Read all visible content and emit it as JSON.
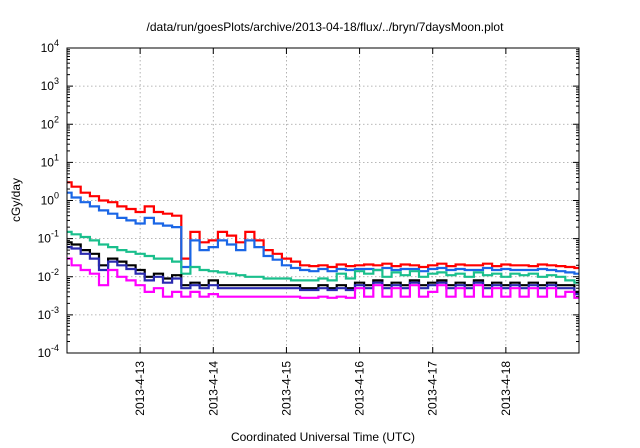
{
  "chart_data": {
    "type": "line",
    "title": "/data/run/goesPlots/archive/2013-04-18/flux/../bryn/7daysMoon.plot",
    "xlabel": "Coordinated Universal Time (UTC)",
    "ylabel": "cGy/day",
    "yscale": "log",
    "ylim": [
      0.0001,
      10000
    ],
    "xlim": [
      "2013-04-12 00:00",
      "2013-04-19 00:00"
    ],
    "y_ticks": [
      {
        "value": 0.0001,
        "base": "10",
        "exp": "-4"
      },
      {
        "value": 0.001,
        "base": "10",
        "exp": "-3"
      },
      {
        "value": 0.01,
        "base": "10",
        "exp": "-2"
      },
      {
        "value": 0.1,
        "base": "10",
        "exp": "-1"
      },
      {
        "value": 1,
        "base": "10",
        "exp": "0"
      },
      {
        "value": 10,
        "base": "10",
        "exp": "1"
      },
      {
        "value": 100,
        "base": "10",
        "exp": "2"
      },
      {
        "value": 1000,
        "base": "10",
        "exp": "3"
      },
      {
        "value": 10000,
        "base": "10",
        "exp": "4"
      }
    ],
    "x_ticks": [
      "2013-4-13",
      "2013-4-14",
      "2013-4-15",
      "2013-4-16",
      "2013-4-17",
      "2013-4-18"
    ],
    "x_tick_dates": [
      "2013-04-13 00:00",
      "2013-04-14 00:00",
      "2013-04-15 00:00",
      "2013-04-16 00:00",
      "2013-04-17 00:00",
      "2013-04-18 00:00"
    ],
    "grid": true,
    "x": [
      "2013-04-12 00:00",
      "2013-04-12 03:00",
      "2013-04-12 06:00",
      "2013-04-12 09:00",
      "2013-04-12 12:00",
      "2013-04-12 15:00",
      "2013-04-12 18:00",
      "2013-04-12 21:00",
      "2013-04-13 00:00",
      "2013-04-13 03:00",
      "2013-04-13 06:00",
      "2013-04-13 09:00",
      "2013-04-13 12:00",
      "2013-04-13 15:00",
      "2013-04-13 18:00",
      "2013-04-13 21:00",
      "2013-04-14 00:00",
      "2013-04-14 03:00",
      "2013-04-14 06:00",
      "2013-04-14 09:00",
      "2013-04-14 12:00",
      "2013-04-14 15:00",
      "2013-04-14 18:00",
      "2013-04-14 21:00",
      "2013-04-15 00:00",
      "2013-04-15 03:00",
      "2013-04-15 06:00",
      "2013-04-15 09:00",
      "2013-04-15 12:00",
      "2013-04-15 15:00",
      "2013-04-15 18:00",
      "2013-04-15 21:00",
      "2013-04-16 00:00",
      "2013-04-16 03:00",
      "2013-04-16 06:00",
      "2013-04-16 09:00",
      "2013-04-16 12:00",
      "2013-04-16 15:00",
      "2013-04-16 18:00",
      "2013-04-16 21:00",
      "2013-04-17 00:00",
      "2013-04-17 03:00",
      "2013-04-17 06:00",
      "2013-04-17 09:00",
      "2013-04-17 12:00",
      "2013-04-17 15:00",
      "2013-04-17 18:00",
      "2013-04-17 21:00",
      "2013-04-18 00:00",
      "2013-04-18 03:00",
      "2013-04-18 06:00",
      "2013-04-18 09:00",
      "2013-04-18 12:00",
      "2013-04-18 15:00",
      "2013-04-18 18:00",
      "2013-04-18 21:00",
      "2013-04-19 00:00"
    ],
    "series": [
      {
        "color": "#ff0000",
        "values": [
          3.0,
          2.3,
          1.6,
          1.3,
          1.0,
          0.9,
          0.7,
          0.6,
          0.5,
          0.7,
          0.5,
          0.45,
          0.4,
          0.03,
          0.15,
          0.08,
          0.09,
          0.15,
          0.12,
          0.08,
          0.15,
          0.09,
          0.05,
          0.04,
          0.03,
          0.025,
          0.02,
          0.019,
          0.02,
          0.018,
          0.021,
          0.019,
          0.02,
          0.021,
          0.02,
          0.022,
          0.019,
          0.021,
          0.02,
          0.018,
          0.02,
          0.022,
          0.019,
          0.021,
          0.02,
          0.02,
          0.022,
          0.019,
          0.021,
          0.02,
          0.02,
          0.019,
          0.021,
          0.02,
          0.019,
          0.018,
          0.017
        ]
      },
      {
        "color": "#1a66e6",
        "values": [
          1.6,
          1.2,
          0.9,
          0.7,
          0.55,
          0.45,
          0.35,
          0.3,
          0.25,
          0.35,
          0.25,
          0.22,
          0.2,
          0.018,
          0.09,
          0.05,
          0.06,
          0.09,
          0.07,
          0.05,
          0.09,
          0.06,
          0.035,
          0.028,
          0.02,
          0.017,
          0.015,
          0.014,
          0.016,
          0.014,
          0.016,
          0.015,
          0.016,
          0.016,
          0.015,
          0.017,
          0.015,
          0.016,
          0.016,
          0.014,
          0.016,
          0.017,
          0.015,
          0.016,
          0.015,
          0.015,
          0.017,
          0.015,
          0.016,
          0.015,
          0.015,
          0.015,
          0.016,
          0.015,
          0.014,
          0.013,
          0.012
        ]
      },
      {
        "color": "#1abf8c",
        "values": [
          0.15,
          0.13,
          0.11,
          0.09,
          0.07,
          0.06,
          0.05,
          0.045,
          0.04,
          0.035,
          0.03,
          0.03,
          0.025,
          0.012,
          0.018,
          0.015,
          0.014,
          0.013,
          0.012,
          0.011,
          0.01,
          0.01,
          0.009,
          0.009,
          0.009,
          0.008,
          0.008,
          0.008,
          0.009,
          0.008,
          0.012,
          0.009,
          0.014,
          0.012,
          0.015,
          0.01,
          0.013,
          0.011,
          0.014,
          0.01,
          0.012,
          0.013,
          0.011,
          0.012,
          0.01,
          0.013,
          0.011,
          0.012,
          0.01,
          0.012,
          0.011,
          0.012,
          0.01,
          0.011,
          0.01,
          0.008,
          0.007
        ]
      },
      {
        "color": "#000000",
        "values": [
          0.08,
          0.07,
          0.05,
          0.04,
          0.02,
          0.03,
          0.025,
          0.02,
          0.015,
          0.01,
          0.012,
          0.009,
          0.011,
          0.006,
          0.007,
          0.006,
          0.008,
          0.006,
          0.006,
          0.006,
          0.006,
          0.006,
          0.006,
          0.006,
          0.006,
          0.006,
          0.005,
          0.005,
          0.006,
          0.005,
          0.006,
          0.005,
          0.007,
          0.006,
          0.008,
          0.006,
          0.007,
          0.006,
          0.008,
          0.006,
          0.007,
          0.008,
          0.006,
          0.007,
          0.006,
          0.008,
          0.006,
          0.007,
          0.006,
          0.007,
          0.006,
          0.007,
          0.006,
          0.007,
          0.006,
          0.006,
          0.004
        ]
      },
      {
        "color": "#2a2ab0",
        "values": [
          0.06,
          0.055,
          0.04,
          0.03,
          0.015,
          0.025,
          0.02,
          0.016,
          0.012,
          0.008,
          0.01,
          0.007,
          0.009,
          0.005,
          0.006,
          0.005,
          0.006,
          0.005,
          0.005,
          0.005,
          0.005,
          0.005,
          0.005,
          0.005,
          0.005,
          0.005,
          0.0045,
          0.0045,
          0.005,
          0.0045,
          0.005,
          0.0045,
          0.006,
          0.005,
          0.007,
          0.005,
          0.006,
          0.005,
          0.007,
          0.005,
          0.006,
          0.007,
          0.005,
          0.006,
          0.005,
          0.007,
          0.005,
          0.006,
          0.005,
          0.006,
          0.005,
          0.006,
          0.005,
          0.006,
          0.005,
          0.005,
          0.0035
        ]
      },
      {
        "color": "#ff00ff",
        "values": [
          0.03,
          0.02,
          0.015,
          0.012,
          0.006,
          0.015,
          0.01,
          0.008,
          0.006,
          0.004,
          0.005,
          0.003,
          0.004,
          0.003,
          0.004,
          0.003,
          0.0035,
          0.003,
          0.003,
          0.003,
          0.003,
          0.003,
          0.003,
          0.003,
          0.003,
          0.003,
          0.0028,
          0.0028,
          0.003,
          0.0028,
          0.003,
          0.0028,
          0.005,
          0.003,
          0.006,
          0.003,
          0.005,
          0.003,
          0.006,
          0.003,
          0.004,
          0.006,
          0.003,
          0.005,
          0.003,
          0.006,
          0.003,
          0.005,
          0.003,
          0.005,
          0.003,
          0.005,
          0.003,
          0.005,
          0.003,
          0.004,
          0.0028
        ]
      }
    ]
  }
}
